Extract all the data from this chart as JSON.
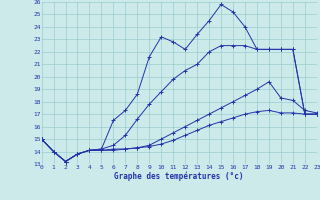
{
  "title": "Graphe des températures (°c)",
  "background_color": "#cceaea",
  "grid_color": "#99cccc",
  "line_color": "#2233aa",
  "ylim": [
    13,
    26
  ],
  "xlim": [
    0,
    23
  ],
  "ytick_vals": [
    13,
    14,
    15,
    16,
    17,
    18,
    19,
    20,
    21,
    22,
    23,
    24,
    25,
    26
  ],
  "xtick_vals": [
    0,
    1,
    2,
    3,
    4,
    5,
    6,
    7,
    8,
    9,
    10,
    11,
    12,
    13,
    14,
    15,
    16,
    17,
    18,
    19,
    20,
    21,
    22,
    23
  ],
  "lines": [
    [
      15.0,
      14.0,
      13.2,
      13.8,
      14.1,
      14.2,
      16.5,
      17.3,
      18.6,
      21.6,
      23.2,
      22.8,
      22.2,
      23.4,
      24.5,
      25.8,
      25.2,
      24.0,
      22.2,
      22.2,
      22.2,
      22.2,
      17.0,
      17.0
    ],
    [
      15.0,
      14.0,
      13.2,
      13.8,
      14.1,
      14.2,
      14.5,
      15.3,
      16.6,
      17.8,
      18.8,
      19.8,
      20.5,
      21.0,
      22.0,
      22.5,
      22.5,
      22.5,
      22.2,
      22.2,
      22.2,
      22.2,
      17.0,
      17.0
    ],
    [
      15.0,
      14.0,
      13.2,
      13.8,
      14.1,
      14.1,
      14.1,
      14.2,
      14.3,
      14.5,
      15.0,
      15.5,
      16.0,
      16.5,
      17.0,
      17.5,
      18.0,
      18.5,
      19.0,
      19.6,
      18.3,
      18.1,
      17.3,
      17.1
    ],
    [
      15.0,
      14.0,
      13.2,
      13.8,
      14.1,
      14.1,
      14.2,
      14.2,
      14.3,
      14.4,
      14.6,
      14.9,
      15.3,
      15.7,
      16.1,
      16.4,
      16.7,
      17.0,
      17.2,
      17.3,
      17.1,
      17.1,
      17.0,
      17.0
    ]
  ]
}
